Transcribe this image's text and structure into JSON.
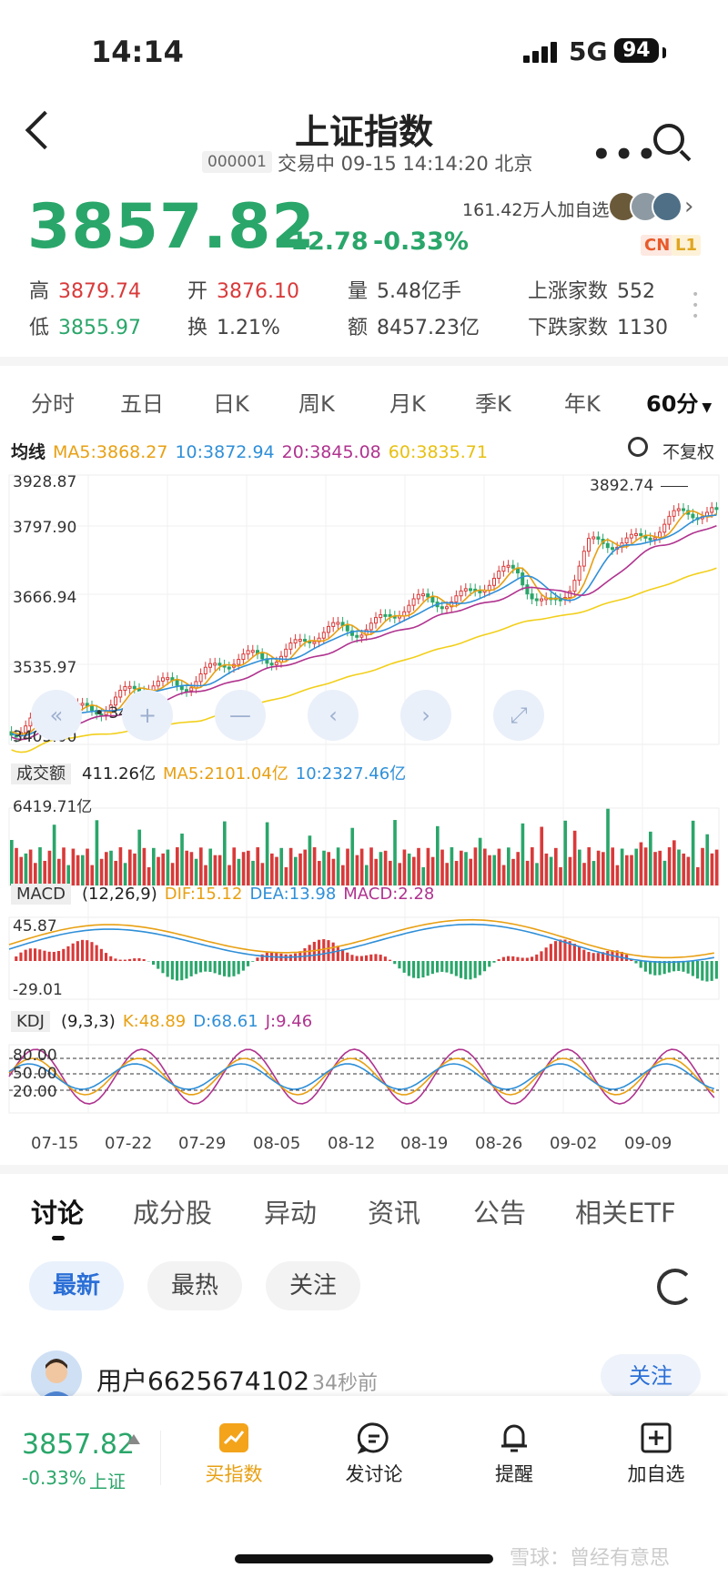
{
  "status": {
    "time": "14:14",
    "network": "5G",
    "battery": "94"
  },
  "header": {
    "title": "上证指数",
    "code": "000001",
    "trade_info": "交易中 09-15 14:14:20 北京"
  },
  "quote": {
    "price": "3857.82",
    "change": "-12.78",
    "change_pct": "-0.33%",
    "watchers": "161.42万人加自选",
    "tag_cn": "CN",
    "tag_l1": "L1",
    "stats": [
      {
        "label": "高",
        "value": "3879.74",
        "color": "red"
      },
      {
        "label": "开",
        "value": "3876.10",
        "color": "red"
      },
      {
        "label": "量",
        "value": "5.48亿手",
        "color": "gray"
      },
      {
        "label": "上涨家数",
        "value": "552",
        "color": "gray"
      },
      {
        "label": "低",
        "value": "3855.97",
        "color": "green"
      },
      {
        "label": "换",
        "value": "1.21%",
        "color": "gray"
      },
      {
        "label": "额",
        "value": "8457.23亿",
        "color": "gray"
      },
      {
        "label": "下跌家数",
        "value": "1130",
        "color": "gray"
      }
    ]
  },
  "period_tabs": [
    "分时",
    "五日",
    "日K",
    "周K",
    "月K",
    "季K",
    "年K",
    "60分"
  ],
  "active_period": "60分",
  "ma_line": {
    "label": "均线",
    "ma5": "MA5:3868.27",
    "ma10": "10:3872.94",
    "ma20": "20:3845.08",
    "ma60": "60:3835.71",
    "fuquan": "不复权",
    "colors": {
      "ma5": "#e8a013",
      "ma10": "#2f8fd8",
      "ma20": "#b0338f",
      "ma60": "#f2cf1a"
    }
  },
  "kline": {
    "y_labels": [
      "3928.87",
      "3797.90",
      "3666.94",
      "3535.97",
      "3405.00"
    ],
    "high_mark": "3892.74",
    "low_mark": "3483.38"
  },
  "volume": {
    "tag": "成交额",
    "value": "411.26亿",
    "ma5": "MA5:2101.04亿",
    "ma10": "10:2327.46亿",
    "max_label": "6419.71亿"
  },
  "macd": {
    "tag": "MACD",
    "params": "(12,26,9)",
    "dif": "DIF:15.12",
    "dea": "DEA:13.98",
    "macd": "MACD:2.28",
    "top_label": "45.87",
    "bottom_label": "-29.01"
  },
  "kdj": {
    "tag": "KDJ",
    "params": "(9,3,3)",
    "k": "K:48.89",
    "d": "D:68.61",
    "j": "J:9.46",
    "levels": [
      "80.00",
      "50.00",
      "20.00"
    ]
  },
  "dates": [
    "07-15",
    "07-22",
    "07-29",
    "08-05",
    "08-12",
    "08-19",
    "08-26",
    "09-02",
    "09-09"
  ],
  "controls": [
    "«",
    "+",
    "—",
    "‹",
    "›",
    "⤢"
  ],
  "content_tabs": [
    "讨论",
    "成分股",
    "异动",
    "资讯",
    "公告",
    "相关ETF"
  ],
  "filter_chips": [
    "最新",
    "最热",
    "关注"
  ],
  "post": {
    "user": "用户6625674102",
    "time": "34秒前",
    "follow": "关注"
  },
  "bottom_bar": {
    "price": "3857.82",
    "pct": "-0.33%",
    "name": "上证",
    "buttons": [
      "买指数",
      "发讨论",
      "提醒",
      "加自选"
    ]
  },
  "watermark": "雪球：曾经有意思"
}
